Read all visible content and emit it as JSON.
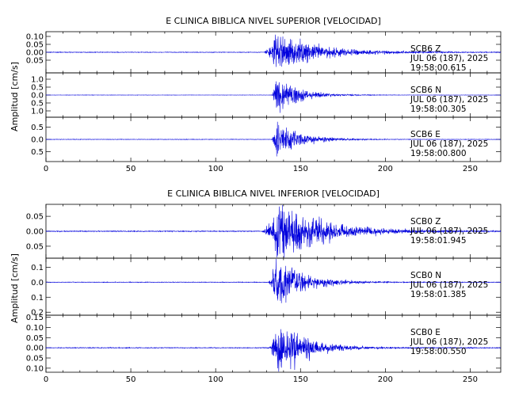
{
  "chart_data": [
    {
      "type": "line",
      "title": "E CLINICA BIBLICA NIVEL SUPERIOR [VELOCIDAD]",
      "ylabel": "Amplitud [cm/s]",
      "xlim": [
        0,
        268
      ],
      "xticks": [
        0,
        50,
        100,
        150,
        200,
        250
      ],
      "panels": [
        {
          "channel": "SCB6  Z",
          "date": "JUL 06 (187), 2025",
          "time": "19:58:00.615",
          "ylim": [
            -0.13,
            0.13
          ],
          "yticks": [
            0.1,
            0.05,
            0.0,
            -0.05
          ],
          "ytick_labels": [
            "0.10",
            "0.05",
            "0.00",
            "0.05"
          ],
          "onset": 128,
          "peak_time": 136,
          "peak_amp": 0.125,
          "decay": 25,
          "noise": 0.002
        },
        {
          "channel": "SCB6  N",
          "date": "JUL 06 (187), 2025",
          "time": "19:58:00.305",
          "ylim": [
            -1.4,
            1.4
          ],
          "yticks": [
            1.0,
            0.5,
            0.0,
            -0.5,
            -1.0
          ],
          "ytick_labels": [
            "1.0",
            "0.5",
            "0.0",
            "0.5",
            "1.0"
          ],
          "onset": 133,
          "peak_time": 136,
          "peak_amp": 1.35,
          "decay": 12,
          "noise": 0.01
        },
        {
          "channel": "SCB6  E",
          "date": "JUL 06 (187), 2025",
          "time": "19:58:00.800",
          "ylim": [
            -0.9,
            0.9
          ],
          "yticks": [
            0.5,
            0.0,
            -0.5
          ],
          "ytick_labels": [
            "0.5",
            "0.0",
            "0.5"
          ],
          "onset": 133,
          "peak_time": 136,
          "peak_amp": 0.85,
          "decay": 13,
          "noise": 0.01
        }
      ]
    },
    {
      "type": "line",
      "title": "E CLINICA BIBLICA NIVEL INFERIOR [VELOCIDAD]",
      "ylabel": "Amplitud [cm/s]",
      "xlim": [
        0,
        268
      ],
      "xticks": [
        0,
        50,
        100,
        150,
        200,
        250
      ],
      "panels": [
        {
          "channel": "SCB0  Z",
          "date": "JUL 06 (187), 2025",
          "time": "19:58:01.945",
          "ylim": [
            -0.09,
            0.09
          ],
          "yticks": [
            0.05,
            0.0,
            -0.05
          ],
          "ytick_labels": [
            "0.05",
            "0.00",
            "0.05"
          ],
          "onset": 127,
          "peak_time": 137,
          "peak_amp": 0.088,
          "decay": 28,
          "noise": 0.0015
        },
        {
          "channel": "SCB0  N",
          "date": "JUL 06 (187), 2025",
          "time": "19:58:01.385",
          "ylim": [
            -0.22,
            0.16
          ],
          "yticks": [
            0.1,
            0.0,
            -0.1,
            -0.2
          ],
          "ytick_labels": [
            "0.1",
            "0.0",
            "0.1",
            "0.2"
          ],
          "onset": 131,
          "peak_time": 136,
          "peak_amp": 0.2,
          "decay": 15,
          "noise": 0.002
        },
        {
          "channel": "SCB0  E",
          "date": "JUL 06 (187), 2025",
          "time": "19:58:00.550",
          "ylim": [
            -0.12,
            0.16
          ],
          "yticks": [
            0.15,
            0.1,
            0.05,
            0.0,
            -0.05,
            -0.1
          ],
          "ytick_labels": [
            "0.15",
            "0.10",
            "0.05",
            "0.00",
            "0.05",
            "0.10"
          ],
          "onset": 131,
          "peak_time": 137,
          "peak_amp": 0.14,
          "decay": 16,
          "noise": 0.002
        }
      ]
    }
  ]
}
